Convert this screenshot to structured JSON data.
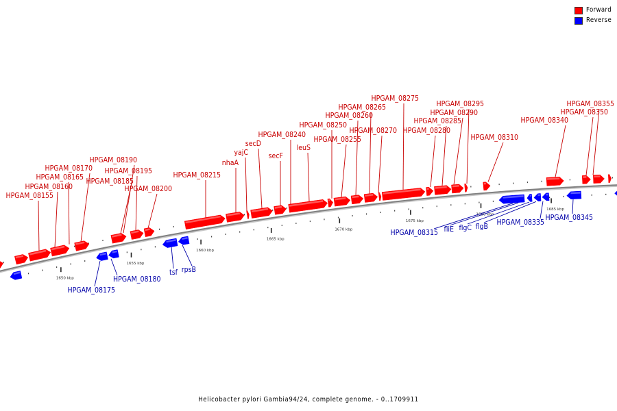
{
  "title": "Helicobacter pylori Gambia94/24, complete genome. - 0..1709911",
  "legend": [
    {
      "label": "Forward",
      "color": "#ff0000"
    },
    {
      "label": "Reverse",
      "color": "#0000ff"
    }
  ],
  "colors": {
    "forward": "#ff0000",
    "reverse": "#0000ff",
    "forward_label": "#c80000",
    "reverse_label": "#0000a8",
    "backbone": "#808080"
  },
  "ticks": [
    "1650 kbp",
    "1655 kbp",
    "1660 kbp",
    "1665 kbp",
    "1670 kbp",
    "1675 kbp",
    "1680 kbp",
    "1685 kbp"
  ],
  "forward_genes": [
    "HPGAM_08155",
    "HPGAM_08160",
    "HPGAM_08165",
    "HPGAM_08170",
    "HPGAM_08185",
    "HPGAM_08190",
    "HPGAM_08195",
    "HPGAM_08200",
    "HPGAM_08215",
    "nhaA",
    "yajC",
    "secD",
    "secF",
    "HPGAM_08240",
    "leuS",
    "HPGAM_08250",
    "HPGAM_08255",
    "HPGAM_08260",
    "HPGAM_08265",
    "HPGAM_08270",
    "HPGAM_08275",
    "HPGAM_08280",
    "HPGAM_08285",
    "HPGAM_08290",
    "HPGAM_08295",
    "HPGAM_08310",
    "HPGAM_08340",
    "HPGAM_08350",
    "HPGAM_08355"
  ],
  "reverse_genes": [
    "HPGAM_08175",
    "HPGAM_08180",
    "tsf",
    "rpsB",
    "HPGAM_08315",
    "fliE",
    "flgC",
    "flgB",
    "HPGAM_08335",
    "HPGAM_08345"
  ]
}
